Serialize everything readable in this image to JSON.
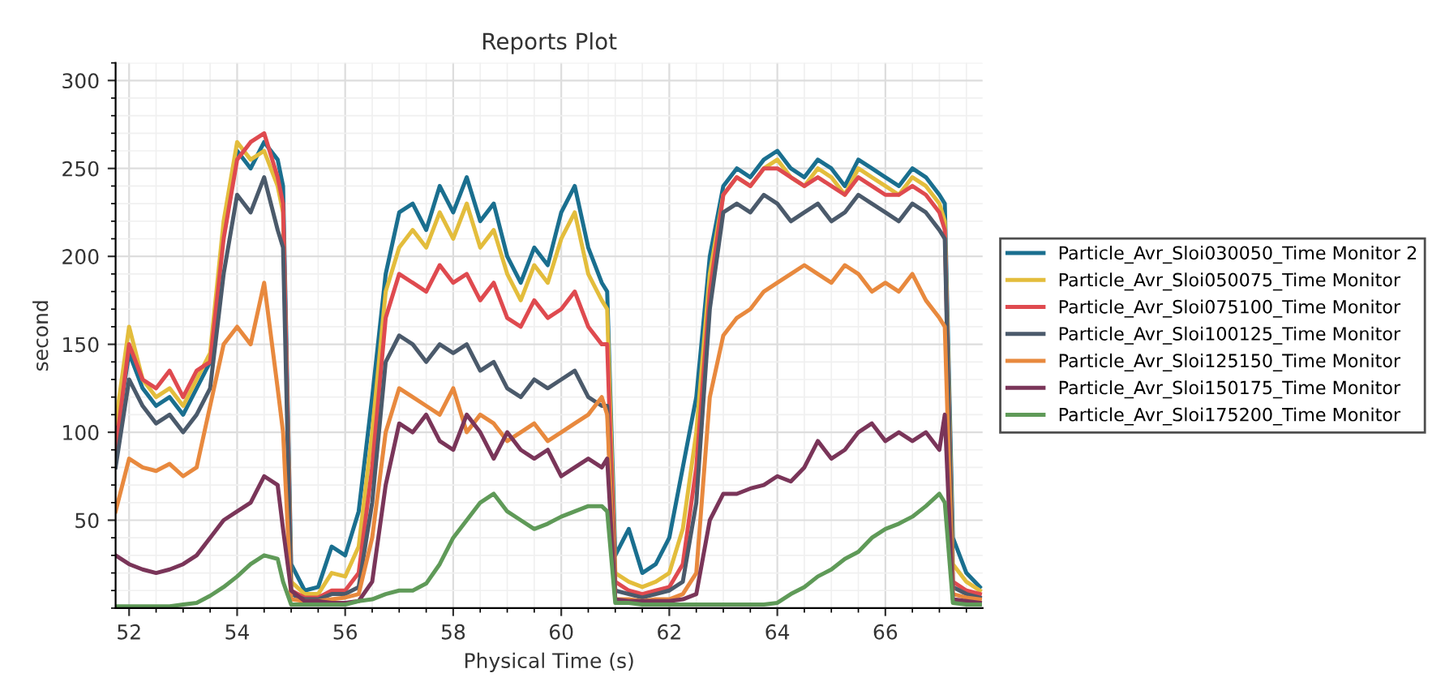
{
  "chart_data": {
    "type": "line",
    "title": "Reports Plot",
    "xlabel": "Physical Time (s)",
    "ylabel": "second",
    "x": [
      51.75,
      52,
      52.25,
      52.5,
      52.75,
      53,
      53.25,
      53.5,
      53.75,
      54,
      54.25,
      54.5,
      54.75,
      54.85,
      55,
      55.25,
      55.5,
      55.75,
      56,
      56.25,
      56.5,
      56.75,
      57,
      57.25,
      57.5,
      57.75,
      58,
      58.25,
      58.5,
      58.75,
      59,
      59.25,
      59.5,
      59.75,
      60,
      60.25,
      60.5,
      60.75,
      60.85,
      61,
      61.25,
      61.5,
      61.75,
      62,
      62.25,
      62.5,
      62.75,
      63,
      63.25,
      63.5,
      63.75,
      64,
      64.25,
      64.5,
      64.75,
      65,
      65.25,
      65.5,
      65.75,
      66,
      66.25,
      66.5,
      66.75,
      67,
      67.1,
      67.25,
      67.5,
      67.75
    ],
    "series": [
      {
        "name": "Particle_Avr_Sloi030050_Time Monitor 2",
        "color": "#1a6f8f",
        "values": [
          95,
          145,
          125,
          115,
          120,
          110,
          125,
          140,
          215,
          260,
          250,
          265,
          255,
          240,
          25,
          10,
          12,
          35,
          30,
          55,
          120,
          190,
          225,
          230,
          215,
          240,
          225,
          245,
          220,
          230,
          200,
          185,
          205,
          195,
          225,
          240,
          205,
          185,
          180,
          30,
          45,
          20,
          25,
          40,
          80,
          120,
          200,
          240,
          250,
          245,
          255,
          260,
          250,
          245,
          255,
          250,
          240,
          255,
          250,
          245,
          240,
          250,
          245,
          235,
          230,
          40,
          20,
          12
        ]
      },
      {
        "name": "Particle_Avr_Sloi050075_Time Monitor",
        "color": "#e3bd3c",
        "values": [
          105,
          160,
          130,
          120,
          125,
          115,
          130,
          145,
          220,
          265,
          255,
          260,
          240,
          225,
          15,
          8,
          8,
          20,
          18,
          35,
          100,
          180,
          205,
          215,
          205,
          225,
          210,
          230,
          205,
          215,
          190,
          175,
          195,
          185,
          210,
          225,
          190,
          175,
          170,
          20,
          15,
          12,
          15,
          20,
          45,
          100,
          190,
          235,
          245,
          240,
          250,
          255,
          245,
          240,
          250,
          245,
          235,
          250,
          245,
          240,
          235,
          245,
          240,
          230,
          220,
          25,
          15,
          10
        ]
      },
      {
        "name": "Particle_Avr_Sloi075100_Time Monitor",
        "color": "#df4a4f",
        "values": [
          90,
          150,
          130,
          125,
          135,
          120,
          135,
          140,
          210,
          255,
          265,
          270,
          245,
          230,
          10,
          6,
          6,
          10,
          10,
          20,
          80,
          165,
          190,
          185,
          180,
          195,
          185,
          190,
          175,
          185,
          165,
          160,
          175,
          165,
          170,
          180,
          160,
          150,
          150,
          15,
          10,
          8,
          10,
          12,
          25,
          80,
          180,
          235,
          245,
          240,
          250,
          250,
          245,
          240,
          245,
          240,
          235,
          245,
          240,
          235,
          235,
          240,
          235,
          225,
          215,
          15,
          10,
          8
        ]
      },
      {
        "name": "Particle_Avr_Sloi100125_Time Monitor",
        "color": "#4b5a6b",
        "values": [
          80,
          130,
          115,
          105,
          110,
          100,
          110,
          125,
          190,
          235,
          225,
          245,
          215,
          205,
          8,
          5,
          5,
          8,
          8,
          12,
          60,
          140,
          155,
          150,
          140,
          150,
          145,
          150,
          135,
          140,
          125,
          120,
          130,
          125,
          130,
          135,
          120,
          115,
          115,
          10,
          8,
          6,
          8,
          10,
          15,
          60,
          170,
          225,
          230,
          225,
          235,
          230,
          220,
          225,
          230,
          220,
          225,
          235,
          230,
          225,
          220,
          230,
          225,
          215,
          210,
          12,
          8,
          6
        ]
      },
      {
        "name": "Particle_Avr_Sloi125150_Time Monitor",
        "color": "#e8893e",
        "values": [
          55,
          85,
          80,
          78,
          82,
          75,
          80,
          115,
          150,
          160,
          150,
          185,
          125,
          100,
          5,
          4,
          4,
          5,
          6,
          8,
          40,
          100,
          125,
          120,
          115,
          110,
          125,
          100,
          110,
          105,
          95,
          100,
          105,
          95,
          100,
          105,
          110,
          120,
          110,
          5,
          5,
          4,
          5,
          5,
          8,
          20,
          120,
          155,
          165,
          170,
          180,
          185,
          190,
          195,
          190,
          185,
          195,
          190,
          180,
          185,
          180,
          190,
          175,
          165,
          160,
          8,
          6,
          5
        ]
      },
      {
        "name": "Particle_Avr_Sloi150175_Time Monitor",
        "color": "#7a3559",
        "values": [
          30,
          25,
          22,
          20,
          22,
          25,
          30,
          40,
          50,
          55,
          60,
          75,
          70,
          45,
          10,
          4,
          4,
          3,
          3,
          4,
          15,
          70,
          105,
          100,
          110,
          95,
          90,
          110,
          100,
          85,
          100,
          90,
          85,
          90,
          75,
          80,
          85,
          80,
          85,
          5,
          4,
          4,
          4,
          4,
          5,
          8,
          50,
          65,
          65,
          68,
          70,
          75,
          72,
          80,
          95,
          85,
          90,
          100,
          105,
          95,
          100,
          95,
          100,
          90,
          110,
          5,
          4,
          3
        ]
      },
      {
        "name": "Particle_Avr_Sloi175200_Time Monitor",
        "color": "#5f9a58",
        "values": [
          1,
          1,
          1,
          1,
          1,
          2,
          3,
          7,
          12,
          18,
          25,
          30,
          28,
          15,
          2,
          2,
          2,
          2,
          2,
          4,
          5,
          8,
          10,
          10,
          14,
          25,
          40,
          50,
          60,
          65,
          55,
          50,
          45,
          48,
          52,
          55,
          58,
          58,
          55,
          3,
          3,
          2,
          2,
          2,
          2,
          2,
          2,
          2,
          2,
          2,
          2,
          3,
          8,
          12,
          18,
          22,
          28,
          32,
          40,
          45,
          48,
          52,
          58,
          65,
          60,
          3,
          2,
          2
        ]
      }
    ],
    "xlim": [
      51.75,
      67.8
    ],
    "xticks": [
      52,
      54,
      56,
      58,
      60,
      62,
      64,
      66
    ],
    "ylim": [
      0,
      310
    ],
    "yticks": [
      50,
      100,
      150,
      200,
      250,
      300
    ],
    "grid": true,
    "legend": "right",
    "marker": "none",
    "line_style": "solid"
  }
}
